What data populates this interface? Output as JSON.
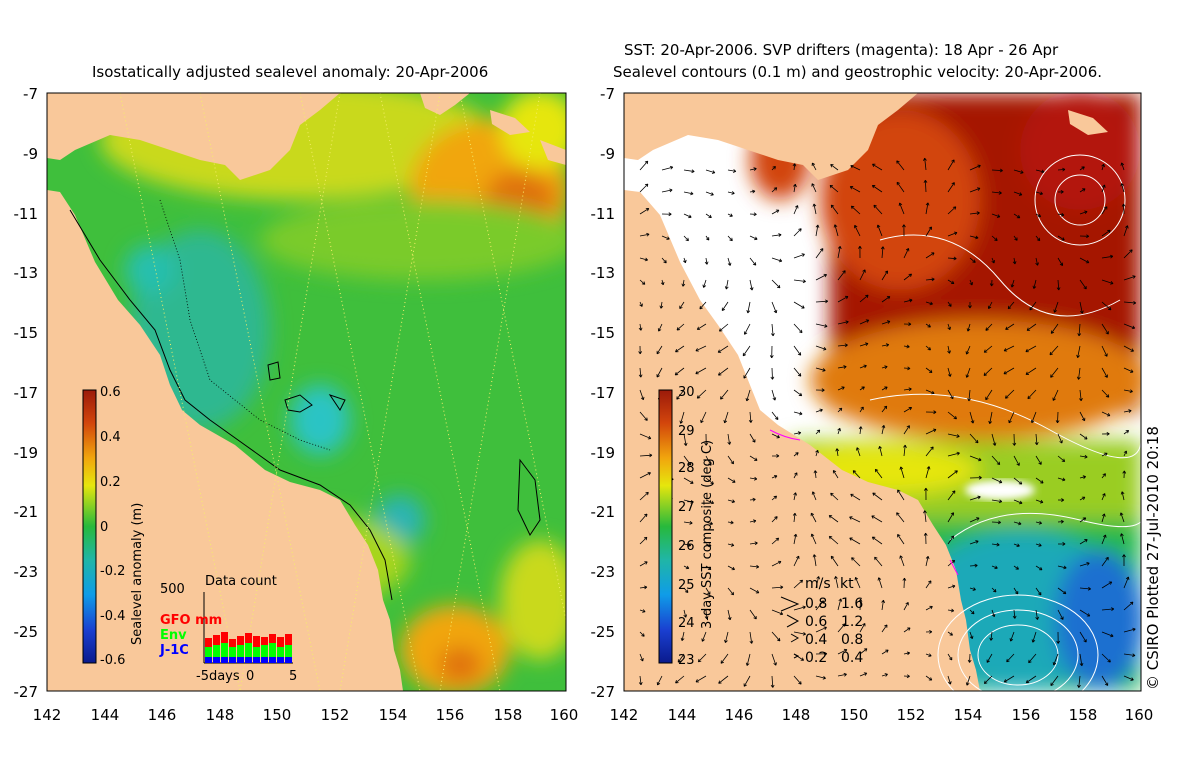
{
  "left_panel": {
    "title": "Isostatically adjusted sealevel anomaly: 20-Apr-2006",
    "x_ticks": [
      "142",
      "144",
      "146",
      "148",
      "150",
      "152",
      "154",
      "156",
      "158",
      "160"
    ],
    "y_ticks": [
      "-7",
      "-9",
      "-11",
      "-13",
      "-15",
      "-17",
      "-19",
      "-21",
      "-23",
      "-25",
      "-27"
    ],
    "colorbar": {
      "label": "Sealevel anomaly (m)",
      "ticks": [
        "0.6",
        "0.4",
        "0.2",
        "0",
        "-0.2",
        "-0.4",
        "-0.6"
      ]
    },
    "data_count": {
      "title": "Data count",
      "max_label": "500",
      "legend": [
        {
          "label": "GFO mm",
          "color": "#ff0000"
        },
        {
          "label": "Env",
          "color": "#00ff00"
        },
        {
          "label": "J-1C",
          "color": "#0000ff"
        }
      ],
      "x_labels": [
        "-5days",
        "0",
        "5"
      ]
    }
  },
  "right_panel": {
    "title_line1": "SST: 20-Apr-2006. SVP drifters (magenta): 18 Apr - 26 Apr",
    "title_line2": "Sealevel contours (0.1 m) and geostrophic velocity: 20-Apr-2006.",
    "x_ticks": [
      "142",
      "144",
      "146",
      "148",
      "150",
      "152",
      "154",
      "156",
      "158",
      "160"
    ],
    "y_ticks": [
      "-7",
      "-9",
      "-11",
      "-13",
      "-15",
      "-17",
      "-19",
      "-21",
      "-23",
      "-25",
      "-27"
    ],
    "colorbar": {
      "label": "3-day SST composite (deg C)",
      "ticks": [
        "30",
        "29",
        "28",
        "27",
        "26",
        "25",
        "24",
        "23"
      ]
    },
    "velocity_legend": {
      "header_ms": "m/s",
      "header_kt": "kt",
      "rows": [
        {
          "ms": "0.8",
          "kt": "1.6"
        },
        {
          "ms": "0.6",
          "kt": "1.2"
        },
        {
          "ms": "0.4",
          "kt": "0.8"
        },
        {
          "ms": "0.2",
          "kt": "0.4"
        }
      ]
    }
  },
  "credit": "© CSIRO Plotted 27-Jul-2010 20:18",
  "colors": {
    "land": "#f9c89a",
    "sla_high": "#9b1a0a",
    "sla_low": "#0a1a8c",
    "sst_warm": "#a51405",
    "sst_cool": "#1a6fd0"
  }
}
